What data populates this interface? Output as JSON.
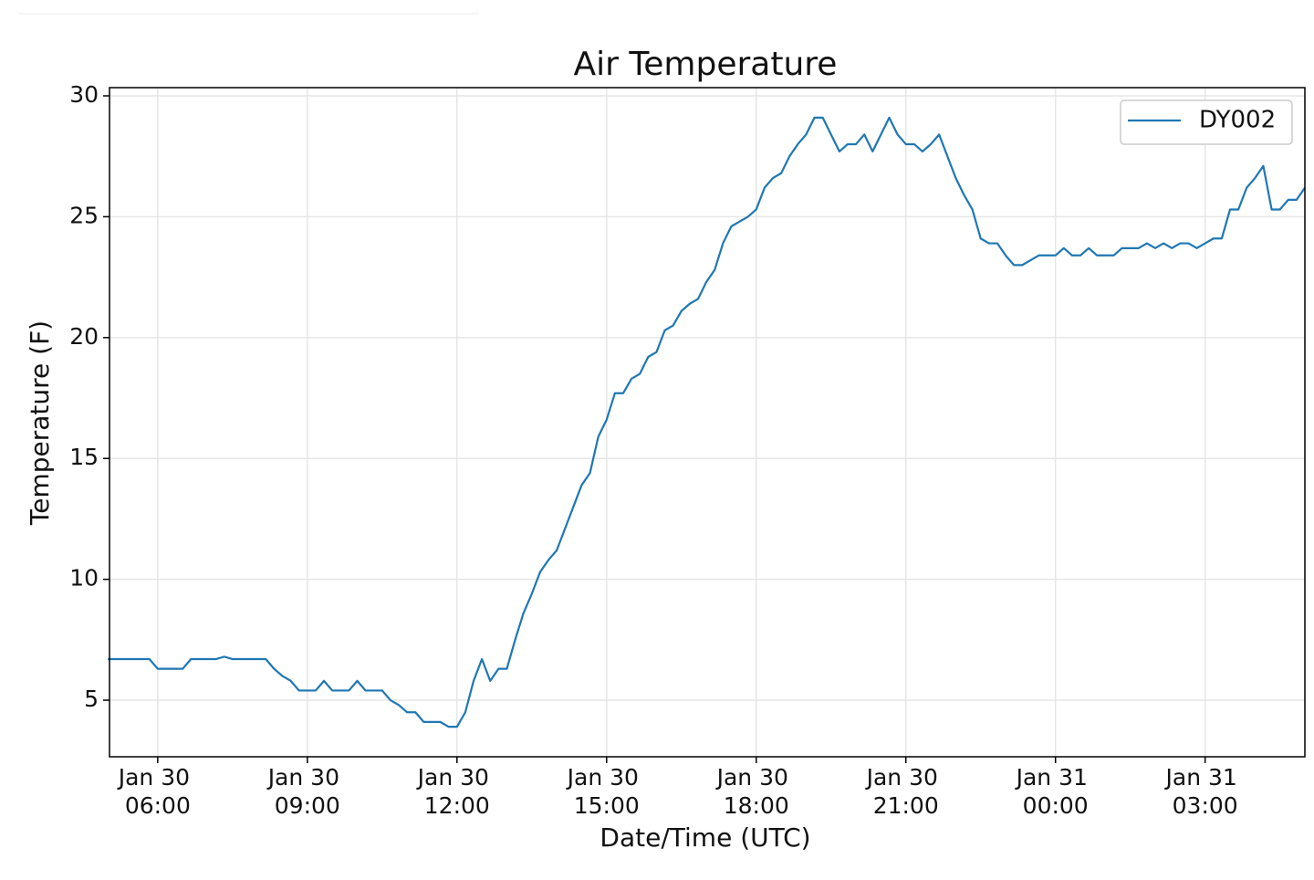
{
  "chart_data": {
    "type": "line",
    "title": "Air Temperature",
    "x_label": "Date/Time (UTC)",
    "y_label": "Temperature (F)",
    "x": [
      "Jan 30 05:00",
      "Jan 30 05:10",
      "Jan 30 05:20",
      "Jan 30 05:30",
      "Jan 30 05:40",
      "Jan 30 05:50",
      "Jan 30 06:00",
      "Jan 30 06:10",
      "Jan 30 06:20",
      "Jan 30 06:30",
      "Jan 30 06:40",
      "Jan 30 06:50",
      "Jan 30 07:00",
      "Jan 30 07:10",
      "Jan 30 07:20",
      "Jan 30 07:30",
      "Jan 30 07:40",
      "Jan 30 07:50",
      "Jan 30 08:00",
      "Jan 30 08:10",
      "Jan 30 08:20",
      "Jan 30 08:30",
      "Jan 30 08:40",
      "Jan 30 08:50",
      "Jan 30 09:00",
      "Jan 30 09:10",
      "Jan 30 09:20",
      "Jan 30 09:30",
      "Jan 30 09:40",
      "Jan 30 09:50",
      "Jan 30 10:00",
      "Jan 30 10:10",
      "Jan 30 10:20",
      "Jan 30 10:30",
      "Jan 30 10:40",
      "Jan 30 10:50",
      "Jan 30 11:00",
      "Jan 30 11:10",
      "Jan 30 11:20",
      "Jan 30 11:30",
      "Jan 30 11:40",
      "Jan 30 11:50",
      "Jan 30 12:00",
      "Jan 30 12:10",
      "Jan 30 12:20",
      "Jan 30 12:30",
      "Jan 30 12:40",
      "Jan 30 12:50",
      "Jan 30 13:00",
      "Jan 30 13:10",
      "Jan 30 13:20",
      "Jan 30 13:30",
      "Jan 30 13:40",
      "Jan 30 13:50",
      "Jan 30 14:00",
      "Jan 30 14:10",
      "Jan 30 14:20",
      "Jan 30 14:30",
      "Jan 30 14:40",
      "Jan 30 14:50",
      "Jan 30 15:00",
      "Jan 30 15:10",
      "Jan 30 15:20",
      "Jan 30 15:30",
      "Jan 30 15:40",
      "Jan 30 15:50",
      "Jan 30 16:00",
      "Jan 30 16:10",
      "Jan 30 16:20",
      "Jan 30 16:30",
      "Jan 30 16:40",
      "Jan 30 16:50",
      "Jan 30 17:00",
      "Jan 30 17:10",
      "Jan 30 17:20",
      "Jan 30 17:30",
      "Jan 30 17:40",
      "Jan 30 17:50",
      "Jan 30 18:00",
      "Jan 30 18:10",
      "Jan 30 18:20",
      "Jan 30 18:30",
      "Jan 30 18:40",
      "Jan 30 18:50",
      "Jan 30 19:00",
      "Jan 30 19:10",
      "Jan 30 19:20",
      "Jan 30 19:30",
      "Jan 30 19:40",
      "Jan 30 19:50",
      "Jan 30 20:00",
      "Jan 30 20:10",
      "Jan 30 20:20",
      "Jan 30 20:30",
      "Jan 30 20:40",
      "Jan 30 20:50",
      "Jan 30 21:00",
      "Jan 30 21:10",
      "Jan 30 21:20",
      "Jan 30 21:30",
      "Jan 30 21:40",
      "Jan 30 21:50",
      "Jan 30 22:00",
      "Jan 30 22:10",
      "Jan 30 22:20",
      "Jan 30 22:30",
      "Jan 30 22:40",
      "Jan 30 22:50",
      "Jan 30 23:00",
      "Jan 30 23:10",
      "Jan 30 23:20",
      "Jan 30 23:30",
      "Jan 30 23:40",
      "Jan 30 23:50",
      "Jan 31 00:00",
      "Jan 31 00:10",
      "Jan 31 00:20",
      "Jan 31 00:30",
      "Jan 31 00:40",
      "Jan 31 00:50",
      "Jan 31 01:00",
      "Jan 31 01:10",
      "Jan 31 01:20",
      "Jan 31 01:30",
      "Jan 31 01:40",
      "Jan 31 01:50",
      "Jan 31 02:00",
      "Jan 31 02:10",
      "Jan 31 02:20",
      "Jan 31 02:30",
      "Jan 31 02:40",
      "Jan 31 02:50",
      "Jan 31 03:00",
      "Jan 31 03:10",
      "Jan 31 03:20",
      "Jan 31 03:30",
      "Jan 31 03:40",
      "Jan 31 03:50",
      "Jan 31 04:00",
      "Jan 31 04:10",
      "Jan 31 04:20",
      "Jan 31 04:30",
      "Jan 31 04:40",
      "Jan 31 04:50",
      "Jan 31 05:00"
    ],
    "series": [
      {
        "name": "DY002",
        "color": "#1f77b4",
        "values": [
          6.7,
          6.7,
          6.7,
          6.7,
          6.7,
          6.7,
          6.3,
          6.3,
          6.3,
          6.3,
          6.7,
          6.7,
          6.7,
          6.7,
          6.8,
          6.7,
          6.7,
          6.7,
          6.7,
          6.7,
          6.3,
          6.0,
          5.8,
          5.4,
          5.4,
          5.4,
          5.8,
          5.4,
          5.4,
          5.4,
          5.8,
          5.4,
          5.4,
          5.4,
          5.0,
          4.8,
          4.5,
          4.5,
          4.1,
          4.1,
          4.1,
          3.9,
          3.9,
          4.5,
          5.8,
          6.7,
          5.8,
          6.3,
          6.3,
          7.5,
          8.6,
          9.4,
          10.3,
          10.8,
          11.2,
          12.1,
          13.0,
          13.9,
          14.4,
          15.9,
          16.6,
          17.7,
          17.7,
          18.3,
          18.5,
          19.2,
          19.4,
          20.3,
          20.5,
          21.1,
          21.4,
          21.6,
          22.3,
          22.8,
          23.9,
          24.6,
          24.8,
          25.0,
          25.3,
          26.2,
          26.6,
          26.8,
          27.5,
          28.0,
          28.4,
          29.1,
          29.1,
          28.4,
          27.7,
          28.0,
          28.0,
          28.4,
          27.7,
          28.4,
          29.1,
          28.4,
          28.0,
          28.0,
          27.7,
          28.0,
          28.4,
          27.5,
          26.6,
          25.9,
          25.3,
          24.1,
          23.9,
          23.9,
          23.4,
          23.0,
          23.0,
          23.2,
          23.4,
          23.4,
          23.4,
          23.7,
          23.4,
          23.4,
          23.7,
          23.4,
          23.4,
          23.4,
          23.7,
          23.7,
          23.7,
          23.9,
          23.7,
          23.9,
          23.7,
          23.9,
          23.9,
          23.7,
          23.9,
          24.1,
          24.1,
          25.3,
          25.3,
          26.2,
          26.6,
          27.1,
          25.3,
          25.3,
          25.7,
          25.7,
          26.2
        ]
      }
    ],
    "xlim": [
      "Jan 30 05:02",
      "Jan 31 05:00"
    ],
    "xticks": [
      "Jan 30 06:00",
      "Jan 30 09:00",
      "Jan 30 12:00",
      "Jan 30 15:00",
      "Jan 30 18:00",
      "Jan 30 21:00",
      "Jan 31 00:00",
      "Jan 31 03:00"
    ],
    "ylim": [
      2.66,
      30.34
    ],
    "yticks": [
      5,
      10,
      15,
      20,
      25,
      30
    ],
    "grid": true,
    "legend": "upper right"
  }
}
